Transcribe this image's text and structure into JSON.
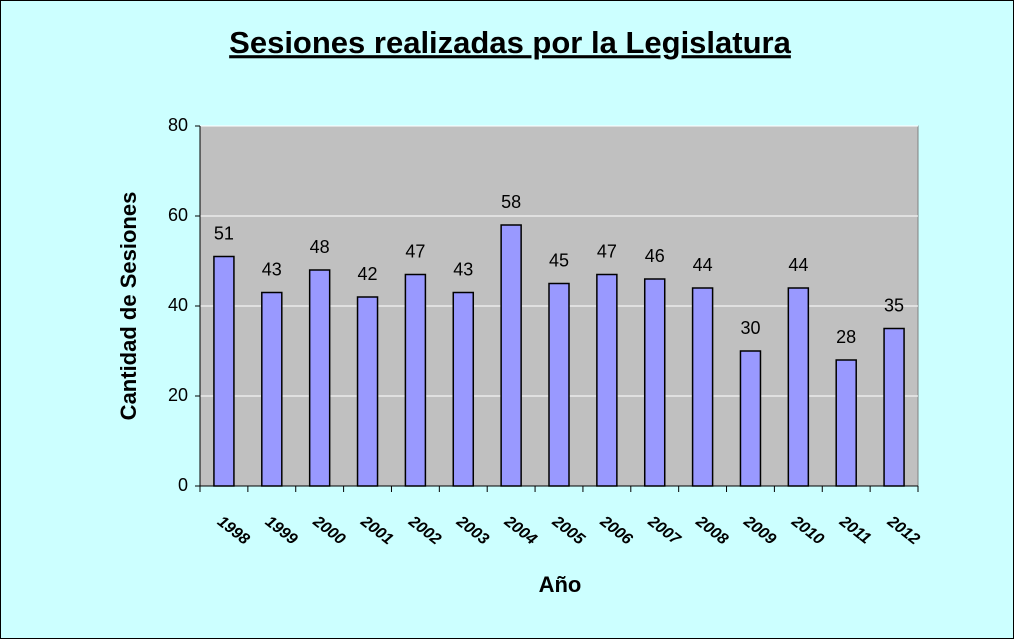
{
  "chart_data": {
    "type": "bar",
    "title": "Sesiones realizadas por la Legislatura",
    "x_label": "Año",
    "y_label": "Cantidad de Sesiones",
    "categories": [
      "1998",
      "1999",
      "2000",
      "2001",
      "2002",
      "2003",
      "2004",
      "2005",
      "2006",
      "2007",
      "2008",
      "2009",
      "2010",
      "2011",
      "2012"
    ],
    "values": [
      51,
      43,
      48,
      42,
      47,
      43,
      58,
      45,
      47,
      46,
      44,
      30,
      44,
      28,
      35
    ],
    "color": "#9999ff",
    "ylim": [
      0,
      80
    ],
    "yticks": [
      0,
      20,
      40,
      60,
      80
    ],
    "grid": true
  }
}
